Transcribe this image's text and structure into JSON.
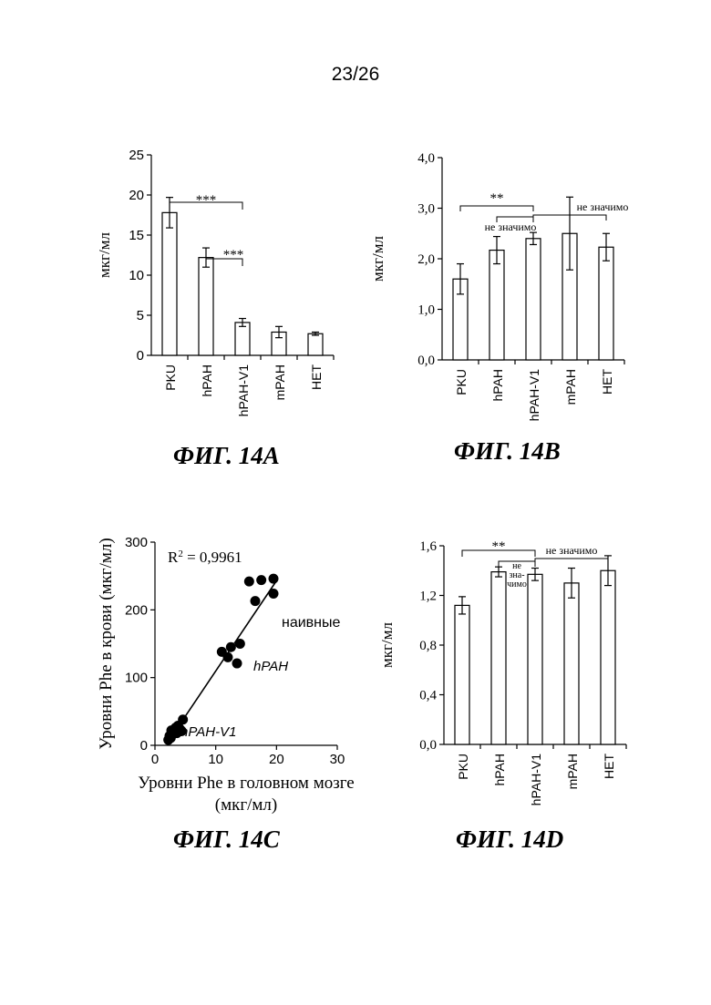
{
  "page_number": "23/26",
  "chart_data": [
    {
      "id": "A",
      "type": "bar",
      "caption": "ФИГ. 14A",
      "ylabel": "мкг/мл",
      "ylim": [
        0,
        25
      ],
      "yticks": [
        "0",
        "5",
        "10",
        "15",
        "20",
        "25"
      ],
      "categories": [
        "PKU",
        "hPAH",
        "hPAH-V1",
        "mPAH",
        "НЕТ"
      ],
      "values": [
        17.8,
        12.2,
        4.1,
        2.9,
        2.7
      ],
      "errors": [
        1.9,
        1.2,
        0.5,
        0.7,
        0.2
      ],
      "significance": [
        {
          "label": "***",
          "from": 0,
          "to": 2
        },
        {
          "label": "***",
          "from": 1,
          "to": 2
        }
      ]
    },
    {
      "id": "B",
      "type": "bar",
      "caption": "ФИГ. 14B",
      "ylabel": "мкг/мл",
      "ylim": [
        0,
        4
      ],
      "yticks": [
        "0,0",
        "1,0",
        "2,0",
        "3,0",
        "4,0"
      ],
      "categories": [
        "PKU",
        "hPAH",
        "hPAH-V1",
        "mPAH",
        "НЕТ"
      ],
      "values": [
        1.6,
        2.17,
        2.4,
        2.5,
        2.23
      ],
      "errors": [
        0.3,
        0.27,
        0.12,
        0.72,
        0.27
      ],
      "significance": [
        {
          "label": "**",
          "from": 0,
          "to": 2
        },
        {
          "label": "не значимо",
          "from": 1,
          "to": 2
        },
        {
          "label": "не значимо",
          "from": 2,
          "to": 4
        }
      ]
    },
    {
      "id": "C",
      "type": "scatter",
      "caption": "ФИГ. 14C",
      "xlabel_lines": [
        "Уровни Phe в головном мозге",
        "(мкг/мл)"
      ],
      "ylabel": "Уровни Phe в крови (мкг/мл)",
      "xlim": [
        0,
        30
      ],
      "ylim": [
        0,
        300
      ],
      "xticks": [
        "0",
        "10",
        "20",
        "30"
      ],
      "yticks": [
        "0",
        "100",
        "200",
        "300"
      ],
      "r2_label": "R",
      "r2_sup": "2",
      "r2_value": " = 0,9961",
      "group_labels": [
        "наивные",
        "hPAH",
        "hPAH-V1"
      ],
      "fit_line": [
        [
          2.3,
          7
        ],
        [
          20,
          243
        ]
      ],
      "points": [
        [
          15.5,
          242
        ],
        [
          17.5,
          244
        ],
        [
          19.5,
          246
        ],
        [
          16.5,
          213
        ],
        [
          19.5,
          224
        ],
        [
          11,
          138
        ],
        [
          12.5,
          145
        ],
        [
          14,
          150
        ],
        [
          12,
          130
        ],
        [
          13.5,
          121
        ],
        [
          2.2,
          8
        ],
        [
          2.4,
          14
        ],
        [
          2.6,
          11
        ],
        [
          2.9,
          17
        ],
        [
          3.1,
          20
        ],
        [
          3.4,
          26
        ],
        [
          3.8,
          29
        ],
        [
          4.1,
          24
        ],
        [
          4.4,
          21
        ],
        [
          4.6,
          38
        ],
        [
          3.6,
          18
        ],
        [
          2.7,
          22
        ]
      ]
    },
    {
      "id": "D",
      "type": "bar",
      "caption": "ФИГ. 14D",
      "ylabel": "мкг/мл",
      "ylim": [
        0,
        1.6
      ],
      "yticks": [
        "0,0",
        "0,4",
        "0,8",
        "1,2",
        "1,6"
      ],
      "categories": [
        "PKU",
        "hPAH",
        "hPAH-V1",
        "mPAH",
        "НЕТ"
      ],
      "values": [
        1.12,
        1.39,
        1.37,
        1.3,
        1.4
      ],
      "errors": [
        0.07,
        0.04,
        0.05,
        0.12,
        0.12
      ],
      "significance": [
        {
          "label": "**",
          "from": 0,
          "to": 2
        },
        {
          "label": "не значимо",
          "from": 2,
          "to": 4
        }
      ],
      "stacked_note": [
        "не",
        "зна-",
        "чимо"
      ]
    }
  ]
}
